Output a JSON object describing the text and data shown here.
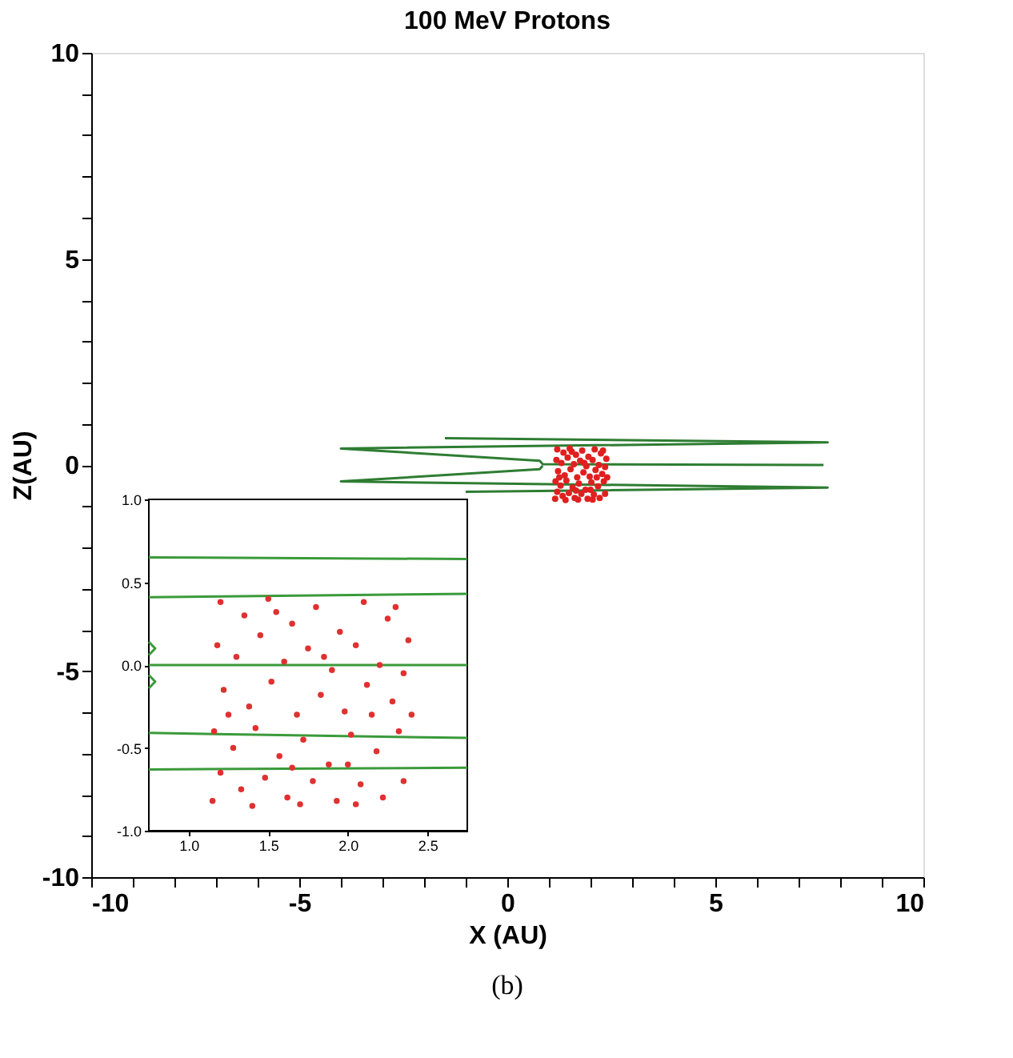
{
  "chart_data": [
    {
      "type": "scatter",
      "title": "100 MeV Protons",
      "xlabel": "X (AU)",
      "ylabel": "Z(AU)",
      "xlim": [
        -10,
        10
      ],
      "ylim": [
        -10,
        10
      ],
      "xticks": [
        -10,
        {
          "value": -9,
          "label": null
        },
        {
          "value": -8,
          "label": null
        },
        {
          "value": -7,
          "label": null
        },
        {
          "value": -6,
          "label": null
        },
        -5,
        {
          "value": -4,
          "label": null
        },
        {
          "value": -3,
          "label": null
        },
        {
          "value": -2,
          "label": null
        },
        {
          "value": -1,
          "label": null
        },
        0,
        {
          "value": 1,
          "label": null
        },
        {
          "value": 2,
          "label": null
        },
        {
          "value": 3,
          "label": null
        },
        {
          "value": 4,
          "label": null
        },
        5,
        {
          "value": 6,
          "label": null
        },
        {
          "value": 7,
          "label": null
        },
        {
          "value": 8,
          "label": null
        },
        {
          "value": 9,
          "label": null
        },
        10
      ],
      "yticks": [
        -10,
        {
          "value": -9,
          "label": null
        },
        {
          "value": -8,
          "label": null
        },
        {
          "value": -7,
          "label": null
        },
        {
          "value": -6,
          "label": null
        },
        -5,
        {
          "value": -4,
          "label": null
        },
        {
          "value": -3,
          "label": null
        },
        {
          "value": -2,
          "label": null
        },
        {
          "value": -1,
          "label": null
        },
        0,
        {
          "value": 1,
          "label": null
        },
        {
          "value": 2,
          "label": null
        },
        {
          "value": 3,
          "label": null
        },
        {
          "value": 4,
          "label": null
        },
        5,
        {
          "value": 6,
          "label": null
        },
        {
          "value": 7,
          "label": null
        },
        {
          "value": 8,
          "label": null
        },
        {
          "value": 9,
          "label": null
        },
        10
      ],
      "grid": false,
      "annotations": [
        "(b)"
      ],
      "series": [
        {
          "type": "line",
          "color": "#2e7d32",
          "x": [
            -1.5,
            7.7,
            -4.0,
            0.78,
            0.85,
            7.6
          ],
          "values": [
            0.65,
            0.55,
            0.4,
            0.1,
            0.02,
            0.0
          ]
        },
        {
          "type": "line",
          "color": "#2e7d32",
          "x": [
            -1.0,
            7.7,
            -4.0,
            0.78,
            0.85
          ],
          "values": [
            -0.65,
            -0.55,
            -0.4,
            -0.1,
            -0.02
          ]
        },
        {
          "type": "scatter",
          "color": "#e02020",
          "marker": "circle",
          "x": [
            1.2,
            1.35,
            1.5,
            1.65,
            1.8,
            1.95,
            2.1,
            2.25,
            2.38,
            1.18,
            1.3,
            1.45,
            1.6,
            1.75,
            1.9,
            2.05,
            2.2,
            2.35,
            1.22,
            1.38,
            1.52,
            1.68,
            1.83,
            1.98,
            2.12,
            2.28,
            2.4,
            1.16,
            1.28,
            1.42,
            1.57,
            1.72,
            1.88,
            2.02,
            2.18,
            2.32,
            1.2,
            1.33,
            1.48,
            1.62,
            1.78,
            1.93,
            2.08,
            2.22,
            2.35,
            1.15,
            1.4,
            1.7,
            2.0,
            2.15,
            1.55,
            1.85,
            1.25,
            2.3,
            1.65,
            2.05
          ],
          "values": [
            0.38,
            0.3,
            0.4,
            0.25,
            0.35,
            0.2,
            0.38,
            0.28,
            0.15,
            0.12,
            0.05,
            0.18,
            0.02,
            0.1,
            -0.03,
            0.12,
            0.0,
            -0.05,
            -0.15,
            -0.25,
            -0.1,
            -0.3,
            -0.18,
            -0.28,
            -0.12,
            -0.22,
            -0.3,
            -0.4,
            -0.5,
            -0.38,
            -0.55,
            -0.45,
            -0.6,
            -0.42,
            -0.52,
            -0.4,
            -0.65,
            -0.75,
            -0.68,
            -0.8,
            -0.7,
            -0.82,
            -0.72,
            -0.8,
            -0.7,
            -0.82,
            -0.85,
            -0.84,
            -0.6,
            -0.3,
            0.32,
            0.05,
            -0.3,
            0.35,
            -0.62,
            -0.84
          ]
        }
      ]
    },
    {
      "type": "scatter",
      "xlim": [
        0.75,
        2.75
      ],
      "ylim": [
        -1,
        1
      ],
      "xticks": [
        {
          "value": 1,
          "label": "1.0"
        },
        1.5,
        {
          "value": 2,
          "label": "2.0"
        },
        2.5
      ],
      "yticks": [
        {
          "value": -1,
          "label": "-1.0"
        },
        -0.5,
        {
          "value": 0,
          "label": "0.0"
        },
        0.5,
        {
          "value": 1,
          "label": "1.0"
        }
      ],
      "grid": false,
      "series": [
        {
          "type": "line",
          "color": "#3a9a3a",
          "x": [
            0.75,
            2.75
          ],
          "values": [
            0.65,
            0.64
          ]
        },
        {
          "type": "line",
          "color": "#3a9a3a",
          "x": [
            0.75,
            2.75
          ],
          "values": [
            0.41,
            0.43
          ]
        },
        {
          "type": "line",
          "color": "#3a9a3a",
          "x": [
            0.75,
            2.75
          ],
          "values": [
            0.0,
            0.0
          ]
        },
        {
          "type": "line",
          "color": "#3a9a3a",
          "x": [
            0.75,
            2.75
          ],
          "values": [
            -0.41,
            -0.44
          ]
        },
        {
          "type": "line",
          "color": "#3a9a3a",
          "x": [
            0.75,
            2.75
          ],
          "values": [
            -0.63,
            -0.62
          ]
        },
        {
          "type": "line",
          "color": "#3a9a3a",
          "x": [
            0.75,
            0.79,
            0.75
          ],
          "values": [
            0.14,
            0.1,
            0.06
          ]
        },
        {
          "type": "line",
          "color": "#3a9a3a",
          "x": [
            0.75,
            0.79,
            0.75
          ],
          "values": [
            -0.06,
            -0.1,
            -0.14
          ]
        },
        {
          "type": "scatter",
          "color": "#e03030",
          "marker": "circle",
          "x": [
            1.2,
            1.35,
            1.5,
            1.65,
            1.8,
            1.95,
            2.1,
            2.25,
            2.38,
            1.18,
            1.3,
            1.45,
            1.6,
            1.75,
            1.9,
            2.05,
            2.2,
            2.35,
            1.22,
            1.38,
            1.52,
            1.68,
            1.83,
            1.98,
            2.12,
            2.28,
            2.4,
            1.16,
            1.28,
            1.42,
            1.57,
            1.72,
            1.88,
            2.02,
            2.18,
            2.32,
            1.2,
            1.33,
            1.48,
            1.62,
            1.78,
            1.93,
            2.08,
            2.22,
            2.35,
            1.15,
            1.4,
            1.7,
            2.0,
            2.15,
            1.55,
            1.85,
            1.25,
            2.3,
            1.65,
            2.05
          ],
          "values": [
            0.38,
            0.3,
            0.4,
            0.25,
            0.35,
            0.2,
            0.38,
            0.28,
            0.15,
            0.12,
            0.05,
            0.18,
            0.02,
            0.1,
            -0.03,
            0.12,
            0.0,
            -0.05,
            -0.15,
            -0.25,
            -0.1,
            -0.3,
            -0.18,
            -0.28,
            -0.12,
            -0.22,
            -0.3,
            -0.4,
            -0.5,
            -0.38,
            -0.55,
            -0.45,
            -0.6,
            -0.42,
            -0.52,
            -0.4,
            -0.65,
            -0.75,
            -0.68,
            -0.8,
            -0.7,
            -0.82,
            -0.72,
            -0.8,
            -0.7,
            -0.82,
            -0.85,
            -0.84,
            -0.6,
            -0.3,
            0.32,
            0.05,
            -0.3,
            0.35,
            -0.62,
            -0.84
          ]
        }
      ]
    }
  ]
}
